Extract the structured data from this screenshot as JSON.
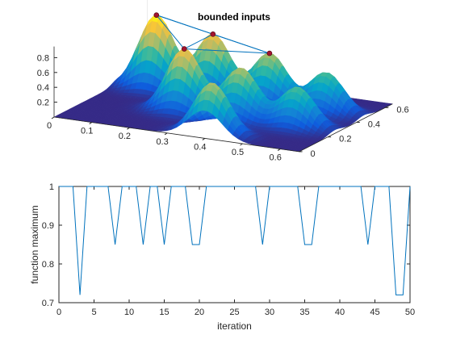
{
  "title": "bounded inputs",
  "chart_data": [
    {
      "type": "surface",
      "title": "bounded inputs",
      "xlabel": "",
      "ylabel": "",
      "zlabel": "",
      "xlim": [
        0,
        0.65
      ],
      "ylim": [
        0,
        0.65
      ],
      "zlim": [
        0,
        1
      ],
      "x_ticks": [
        "0",
        "0.1",
        "0.2",
        "0.3",
        "0.4",
        "0.5",
        "0.6"
      ],
      "y_ticks": [
        "0",
        "0.2",
        "0.4",
        "0.6"
      ],
      "z_ticks": [
        "0.2",
        "0.4",
        "0.6",
        "0.8"
      ],
      "colormap": [
        "#352a87",
        "#0f5cdd",
        "#1481d6",
        "#06a4ca",
        "#2eb7a4",
        "#87bf77",
        "#d1bb59",
        "#fec832",
        "#f9fb0e"
      ],
      "peaks": [
        {
          "x": 0.1,
          "y": 0.45,
          "height": 1.0
        },
        {
          "x": 0.25,
          "y": 0.45,
          "height": 0.85
        },
        {
          "x": 0.4,
          "y": 0.45,
          "height": 0.7
        },
        {
          "x": 0.55,
          "y": 0.45,
          "height": 0.55
        },
        {
          "x": 0.25,
          "y": 0.25,
          "height": 0.85
        },
        {
          "x": 0.4,
          "y": 0.25,
          "height": 0.7
        },
        {
          "x": 0.55,
          "y": 0.25,
          "height": 0.55
        },
        {
          "x": 0.4,
          "y": 0.05,
          "height": 0.7
        }
      ],
      "samples": [
        {
          "x": 0.1,
          "y": 0.45,
          "z": 1.0
        },
        {
          "x": 0.25,
          "y": 0.45,
          "z": 0.85
        },
        {
          "x": 0.25,
          "y": 0.25,
          "z": 0.85
        },
        {
          "x": 0.4,
          "y": 0.45,
          "z": 0.7
        }
      ],
      "marker_color": "#a2142f",
      "line_color": "#0072bd"
    },
    {
      "type": "line",
      "xlabel": "iteration",
      "ylabel": "function maximum",
      "xlim": [
        0,
        50
      ],
      "ylim": [
        0.7,
        1
      ],
      "x_ticks": [
        "0",
        "5",
        "10",
        "15",
        "20",
        "25",
        "30",
        "35",
        "40",
        "45",
        "50"
      ],
      "y_ticks": [
        "0.7",
        "0.8",
        "0.9",
        "1"
      ],
      "grid": false,
      "color": "#0072bd",
      "x": [
        0,
        1,
        2,
        3,
        4,
        5,
        6,
        7,
        8,
        9,
        10,
        11,
        12,
        13,
        14,
        15,
        16,
        17,
        18,
        19,
        20,
        21,
        22,
        23,
        24,
        25,
        26,
        27,
        28,
        29,
        30,
        31,
        32,
        33,
        34,
        35,
        36,
        37,
        38,
        39,
        40,
        41,
        42,
        43,
        44,
        45,
        46,
        47,
        48,
        49,
        50
      ],
      "y": [
        1,
        1,
        1,
        0.72,
        1,
        1,
        1,
        1,
        0.85,
        1,
        1,
        1,
        0.85,
        1,
        1,
        0.85,
        1,
        1,
        1,
        0.85,
        0.85,
        1,
        1,
        1,
        1,
        1,
        1,
        1,
        1,
        0.85,
        1,
        1,
        1,
        1,
        1,
        0.85,
        0.85,
        1,
        1,
        1,
        1,
        1,
        1,
        1,
        0.85,
        1,
        1,
        1,
        0.72,
        0.72,
        1
      ]
    }
  ]
}
